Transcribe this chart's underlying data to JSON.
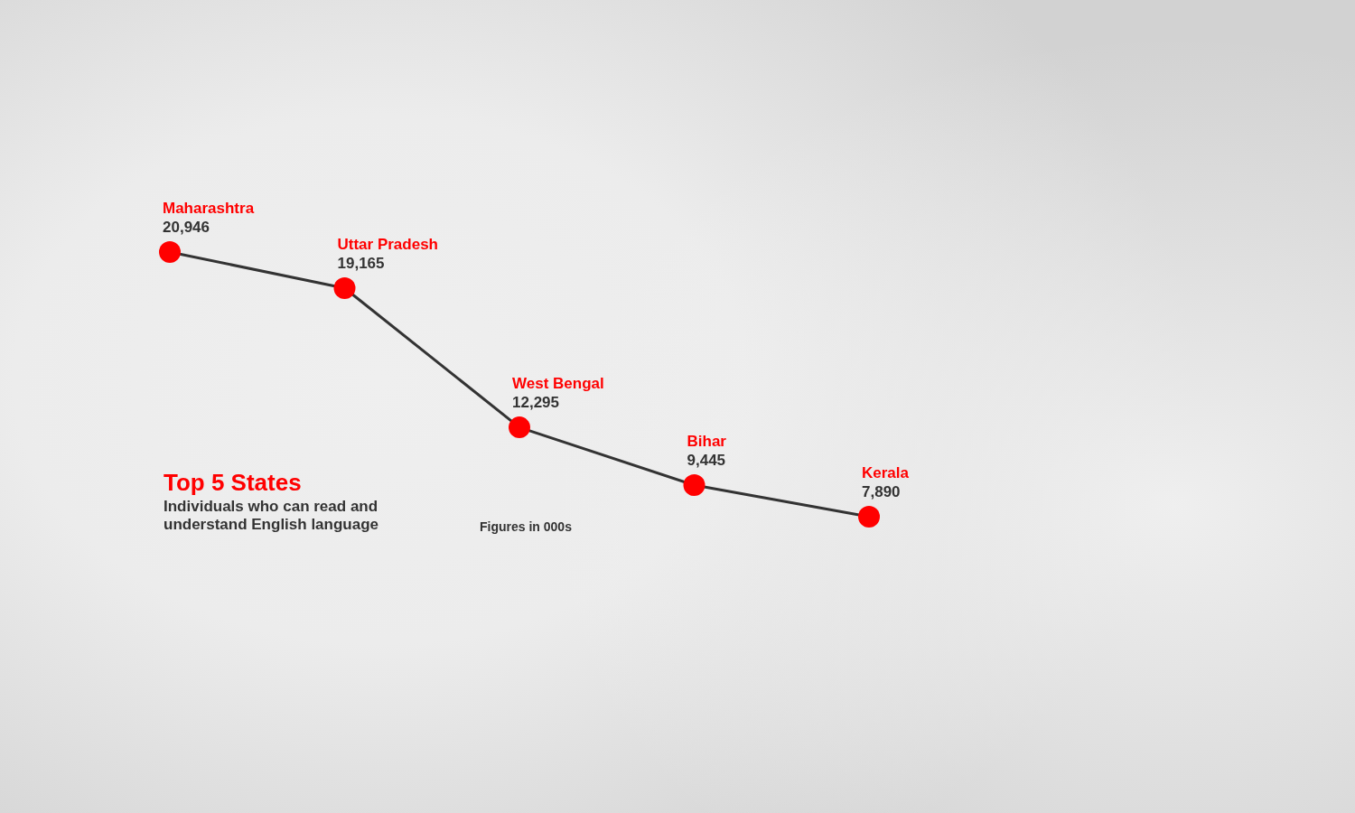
{
  "chart_data": {
    "type": "line",
    "title": "Top 5 States",
    "subtitle": "Individuals who can read and understand English language",
    "annotations": [
      "Figures in 000s"
    ],
    "categories": [
      "Maharashtra",
      "Uttar Pradesh",
      "West Bengal",
      "Bihar",
      "Kerala"
    ],
    "series": [
      {
        "color": "#333333",
        "colors": [
          "#ff0000",
          "#ff0000",
          "#ff0000",
          "#ff0000",
          "#ff0000"
        ],
        "values": [
          20946,
          19165,
          12295,
          9445,
          7890
        ],
        "value_labels": [
          "20,946",
          "19,165",
          "12,295",
          "9,445",
          "7,890"
        ]
      }
    ],
    "marker": "circle",
    "line_style": "solid",
    "tick_labels": false
  }
}
